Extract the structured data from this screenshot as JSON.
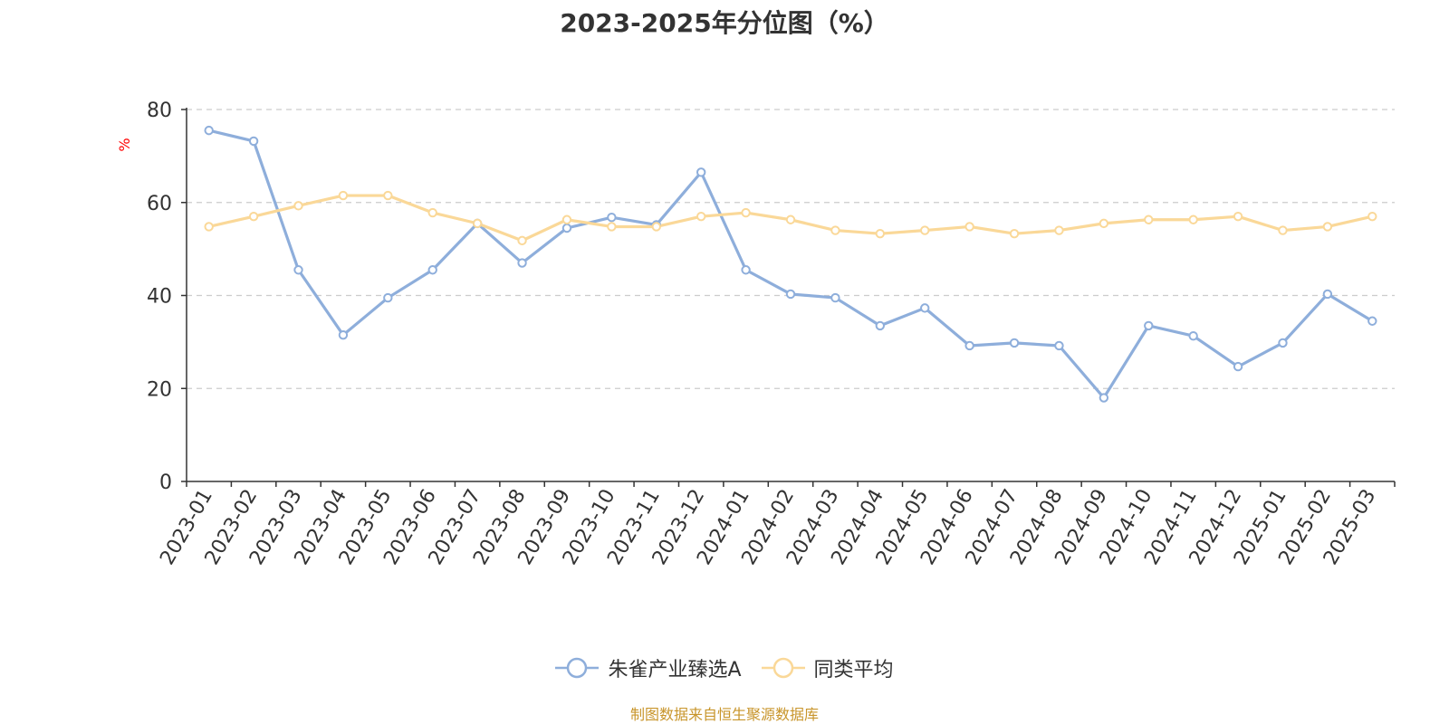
{
  "title": "2023-2025年分位图（%）",
  "source_note": "制图数据来自恒生聚源数据库",
  "chart_data": {
    "type": "line",
    "title": "2023-2025年分位图（%）",
    "ylabel": "%",
    "xlabel": "",
    "ylim": [
      0,
      80
    ],
    "yticks": [
      0,
      20,
      40,
      60,
      80
    ],
    "grid": true,
    "legend_position": "bottom",
    "categories": [
      "2023-01",
      "2023-02",
      "2023-03",
      "2023-04",
      "2023-05",
      "2023-06",
      "2023-07",
      "2023-08",
      "2023-09",
      "2023-10",
      "2023-11",
      "2023-12",
      "2024-01",
      "2024-02",
      "2024-03",
      "2024-04",
      "2024-05",
      "2024-06",
      "2024-07",
      "2024-08",
      "2024-09",
      "2024-10",
      "2024-11",
      "2024-12",
      "2025-01",
      "2025-02",
      "2025-03"
    ],
    "series": [
      {
        "name": "朱雀产业臻选A",
        "color": "#8eaedb",
        "values": [
          75.5,
          73.2,
          45.5,
          31.5,
          39.5,
          45.5,
          55.5,
          47.0,
          54.5,
          56.8,
          55.2,
          66.5,
          45.5,
          40.3,
          39.5,
          33.5,
          37.3,
          29.2,
          29.8,
          29.2,
          18.0,
          33.5,
          31.3,
          24.7,
          29.8,
          40.3,
          34.5
        ]
      },
      {
        "name": "同类平均",
        "color": "#fad898",
        "values": [
          54.8,
          57.0,
          59.3,
          61.5,
          61.5,
          57.8,
          55.5,
          51.8,
          56.3,
          54.8,
          54.8,
          57.0,
          57.8,
          56.3,
          54.0,
          53.3,
          54.0,
          54.8,
          53.3,
          54.0,
          55.5,
          56.3,
          56.3,
          57.0,
          54.0,
          54.8,
          57.0
        ]
      }
    ]
  }
}
